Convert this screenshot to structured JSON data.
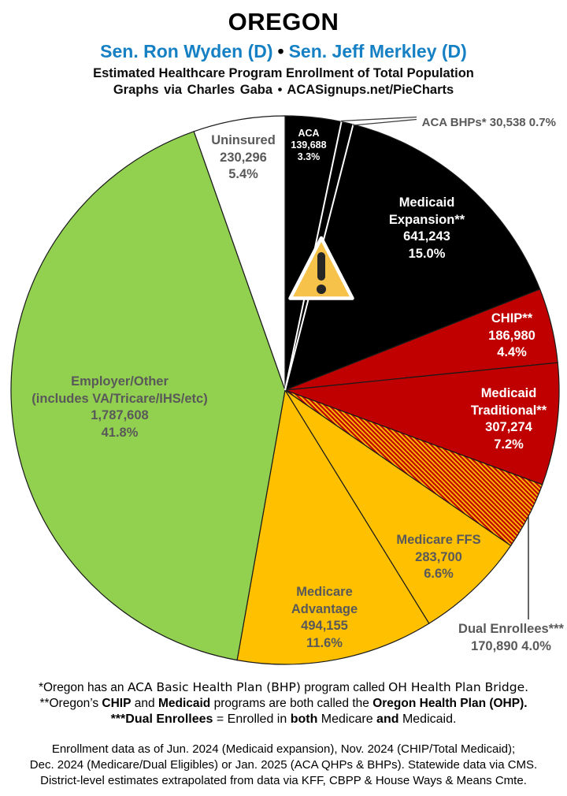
{
  "header": {
    "title": "OREGON",
    "senator_1": "Sen. Ron Wyden (D)",
    "separator": "•",
    "senator_2": "Sen. Jeff Merkley (D)",
    "subtitle": "Estimated Healthcare Program Enrollment of Total Population",
    "credit": "Graphs via Charles Gaba   •   ACASignups.net/PieCharts"
  },
  "chart_data": {
    "type": "pie",
    "title": "Estimated Healthcare Program Enrollment of Total Population",
    "legend_position": "labels-on-slices",
    "start_angle_deg": 0,
    "direction": "clockwise",
    "colors": {
      "black": "#000000",
      "red": "#C00000",
      "yellow": "#FFC000",
      "green": "#92D050",
      "white": "#FFFFFF",
      "hatch_base": "#C00000",
      "hatch_stripe": "#FFC000",
      "label_gray": "#595959",
      "senator_blue": "#1580C4",
      "triangle_fill": "#F6C24A",
      "triangle_glyph": "#262626"
    },
    "segments": [
      {
        "id": "aca",
        "label": "ACA",
        "value": 139688,
        "value_label": "139,688",
        "pct": 3.3,
        "pct_label": "3.3%",
        "color": "black"
      },
      {
        "id": "aca-bhp",
        "label": "ACA BHPs*",
        "value": 30538,
        "value_label": "30,538",
        "pct": 0.7,
        "pct_label": "0.7%",
        "color": "black",
        "white_border": true
      },
      {
        "id": "medicaid-expansion",
        "label": "Medicaid Expansion**",
        "value": 641243,
        "value_label": "641,243",
        "pct": 15.0,
        "pct_label": "15.0%",
        "color": "black"
      },
      {
        "id": "chip",
        "label": "CHIP**",
        "value": 186980,
        "value_label": "186,980",
        "pct": 4.4,
        "pct_label": "4.4%",
        "color": "red"
      },
      {
        "id": "medicaid-traditional",
        "label": "Medicaid Traditional**",
        "value": 307274,
        "value_label": "307,274",
        "pct": 7.2,
        "pct_label": "7.2%",
        "color": "red"
      },
      {
        "id": "dual-enrollees",
        "label": "Dual Enrollees***",
        "value": 170890,
        "value_label": "170,890",
        "pct": 4.0,
        "pct_label": "4.0%",
        "color": "hatch"
      },
      {
        "id": "medicare-ffs",
        "label": "Medicare FFS",
        "value": 283700,
        "value_label": "283,700",
        "pct": 6.6,
        "pct_label": "6.6%",
        "color": "yellow"
      },
      {
        "id": "medicare-advantage",
        "label": "Medicare Advantage",
        "value": 494155,
        "value_label": "494,155",
        "pct": 11.6,
        "pct_label": "11.6%",
        "color": "yellow"
      },
      {
        "id": "employer-other",
        "label": "Employer/Other (includes VA/Tricare/IHS/etc)",
        "value": 1787608,
        "value_label": "1,787,608",
        "pct": 41.8,
        "pct_label": "41.8%",
        "color": "green"
      },
      {
        "id": "uninsured",
        "label": "Uninsured",
        "value": 230296,
        "value_label": "230,296",
        "pct": 5.4,
        "pct_label": "5.4%",
        "color": "white"
      }
    ]
  },
  "labels": {
    "uninsured": [
      "Uninsured",
      "230,296",
      "5.4%"
    ],
    "aca": [
      "ACA",
      "139,688",
      "3.3%"
    ],
    "bhp": "ACA BHPs* 30,538 0.7%",
    "medicaid_expansion": [
      "Medicaid",
      "Expansion**",
      "641,243",
      "15.0%"
    ],
    "chip": [
      "CHIP**",
      "186,980",
      "4.4%"
    ],
    "medicaid_traditional": [
      "Medicaid",
      "Traditional**",
      "307,274",
      "7.2%"
    ],
    "dual": [
      "Dual Enrollees***",
      "170,890 4.0%"
    ],
    "ffs": [
      "Medicare FFS",
      "283,700",
      "6.6%"
    ],
    "ma": [
      "Medicare",
      "Advantage",
      "494,155",
      "11.6%"
    ],
    "employer": [
      "Employer/Other",
      "(includes VA/Tricare/IHS/etc)",
      "1,787,608",
      "41.8%"
    ]
  },
  "footnotes": {
    "f1": [
      "*Oregon has an ",
      "ACA Basic Health Plan (BHP)",
      " program called ",
      "OH Health Plan Bridge."
    ],
    "f2": [
      "**Oregon’s ",
      "CHIP",
      " and ",
      "Medicaid",
      " programs are both called the ",
      "Oregon Health Plan (OHP)."
    ],
    "f3": [
      "***Dual Enrollees",
      " = Enrolled in ",
      "both",
      " Medicare ",
      "and",
      " Medicaid."
    ],
    "source_1": "Enrollment data as of Jun. 2024 (Medicaid expansion), Nov. 2024 (CHIP/Total Medicaid);",
    "source_2": "Dec. 2024 (Medicare/Dual Eligibles) or Jan. 2025 (ACA QHPs & BHPs). Statewide data via CMS.",
    "source_3": "District-level estimates extrapolated from data via KFF, CBPP & House Ways & Means Cmte."
  }
}
